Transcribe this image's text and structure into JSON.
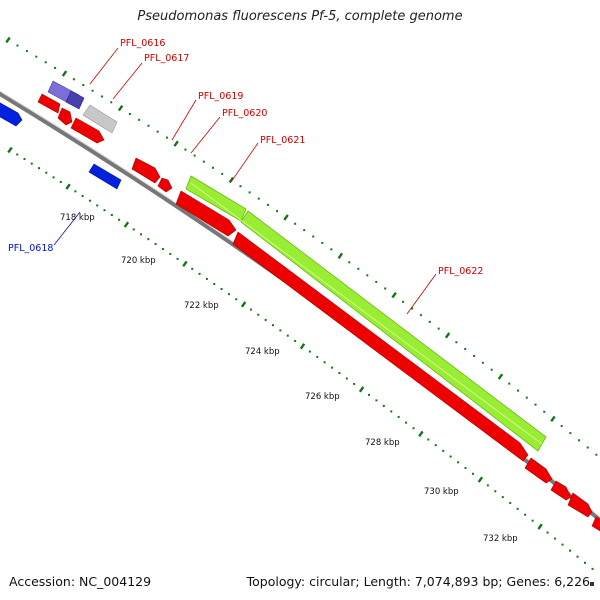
{
  "title": "Pseudomonas fluorescens Pf-5, complete genome",
  "footer": {
    "accession": "Accession: NC_004129",
    "topology": "Topology: circular; Length: 7,074,893 bp; Genes: 6,226"
  },
  "colors": {
    "forward": "#ee0000",
    "forward_dark": "#aa0000",
    "reverse_blue": "#0022dd",
    "reverse_purple": "#7a6fd6",
    "grey_feature": "#c8c8c8",
    "highlight": "#99ee33",
    "backbone": "#777777",
    "tick": "#117711",
    "label_red": "#cc0000",
    "label_blue": "#0011cc"
  },
  "axis_labels": [
    "718 kbp",
    "720 kbp",
    "722 kbp",
    "724 kbp",
    "726 kbp",
    "728 kbp",
    "730 kbp",
    "732 kbp"
  ],
  "gene_labels": [
    {
      "id": "PFL_0616",
      "color": "red"
    },
    {
      "id": "PFL_0617",
      "color": "red"
    },
    {
      "id": "PFL_0619",
      "color": "red"
    },
    {
      "id": "PFL_0620",
      "color": "red"
    },
    {
      "id": "PFL_0621",
      "color": "red"
    },
    {
      "id": "PFL_0622",
      "color": "red"
    },
    {
      "id": "PFL_0618",
      "color": "blue"
    }
  ]
}
